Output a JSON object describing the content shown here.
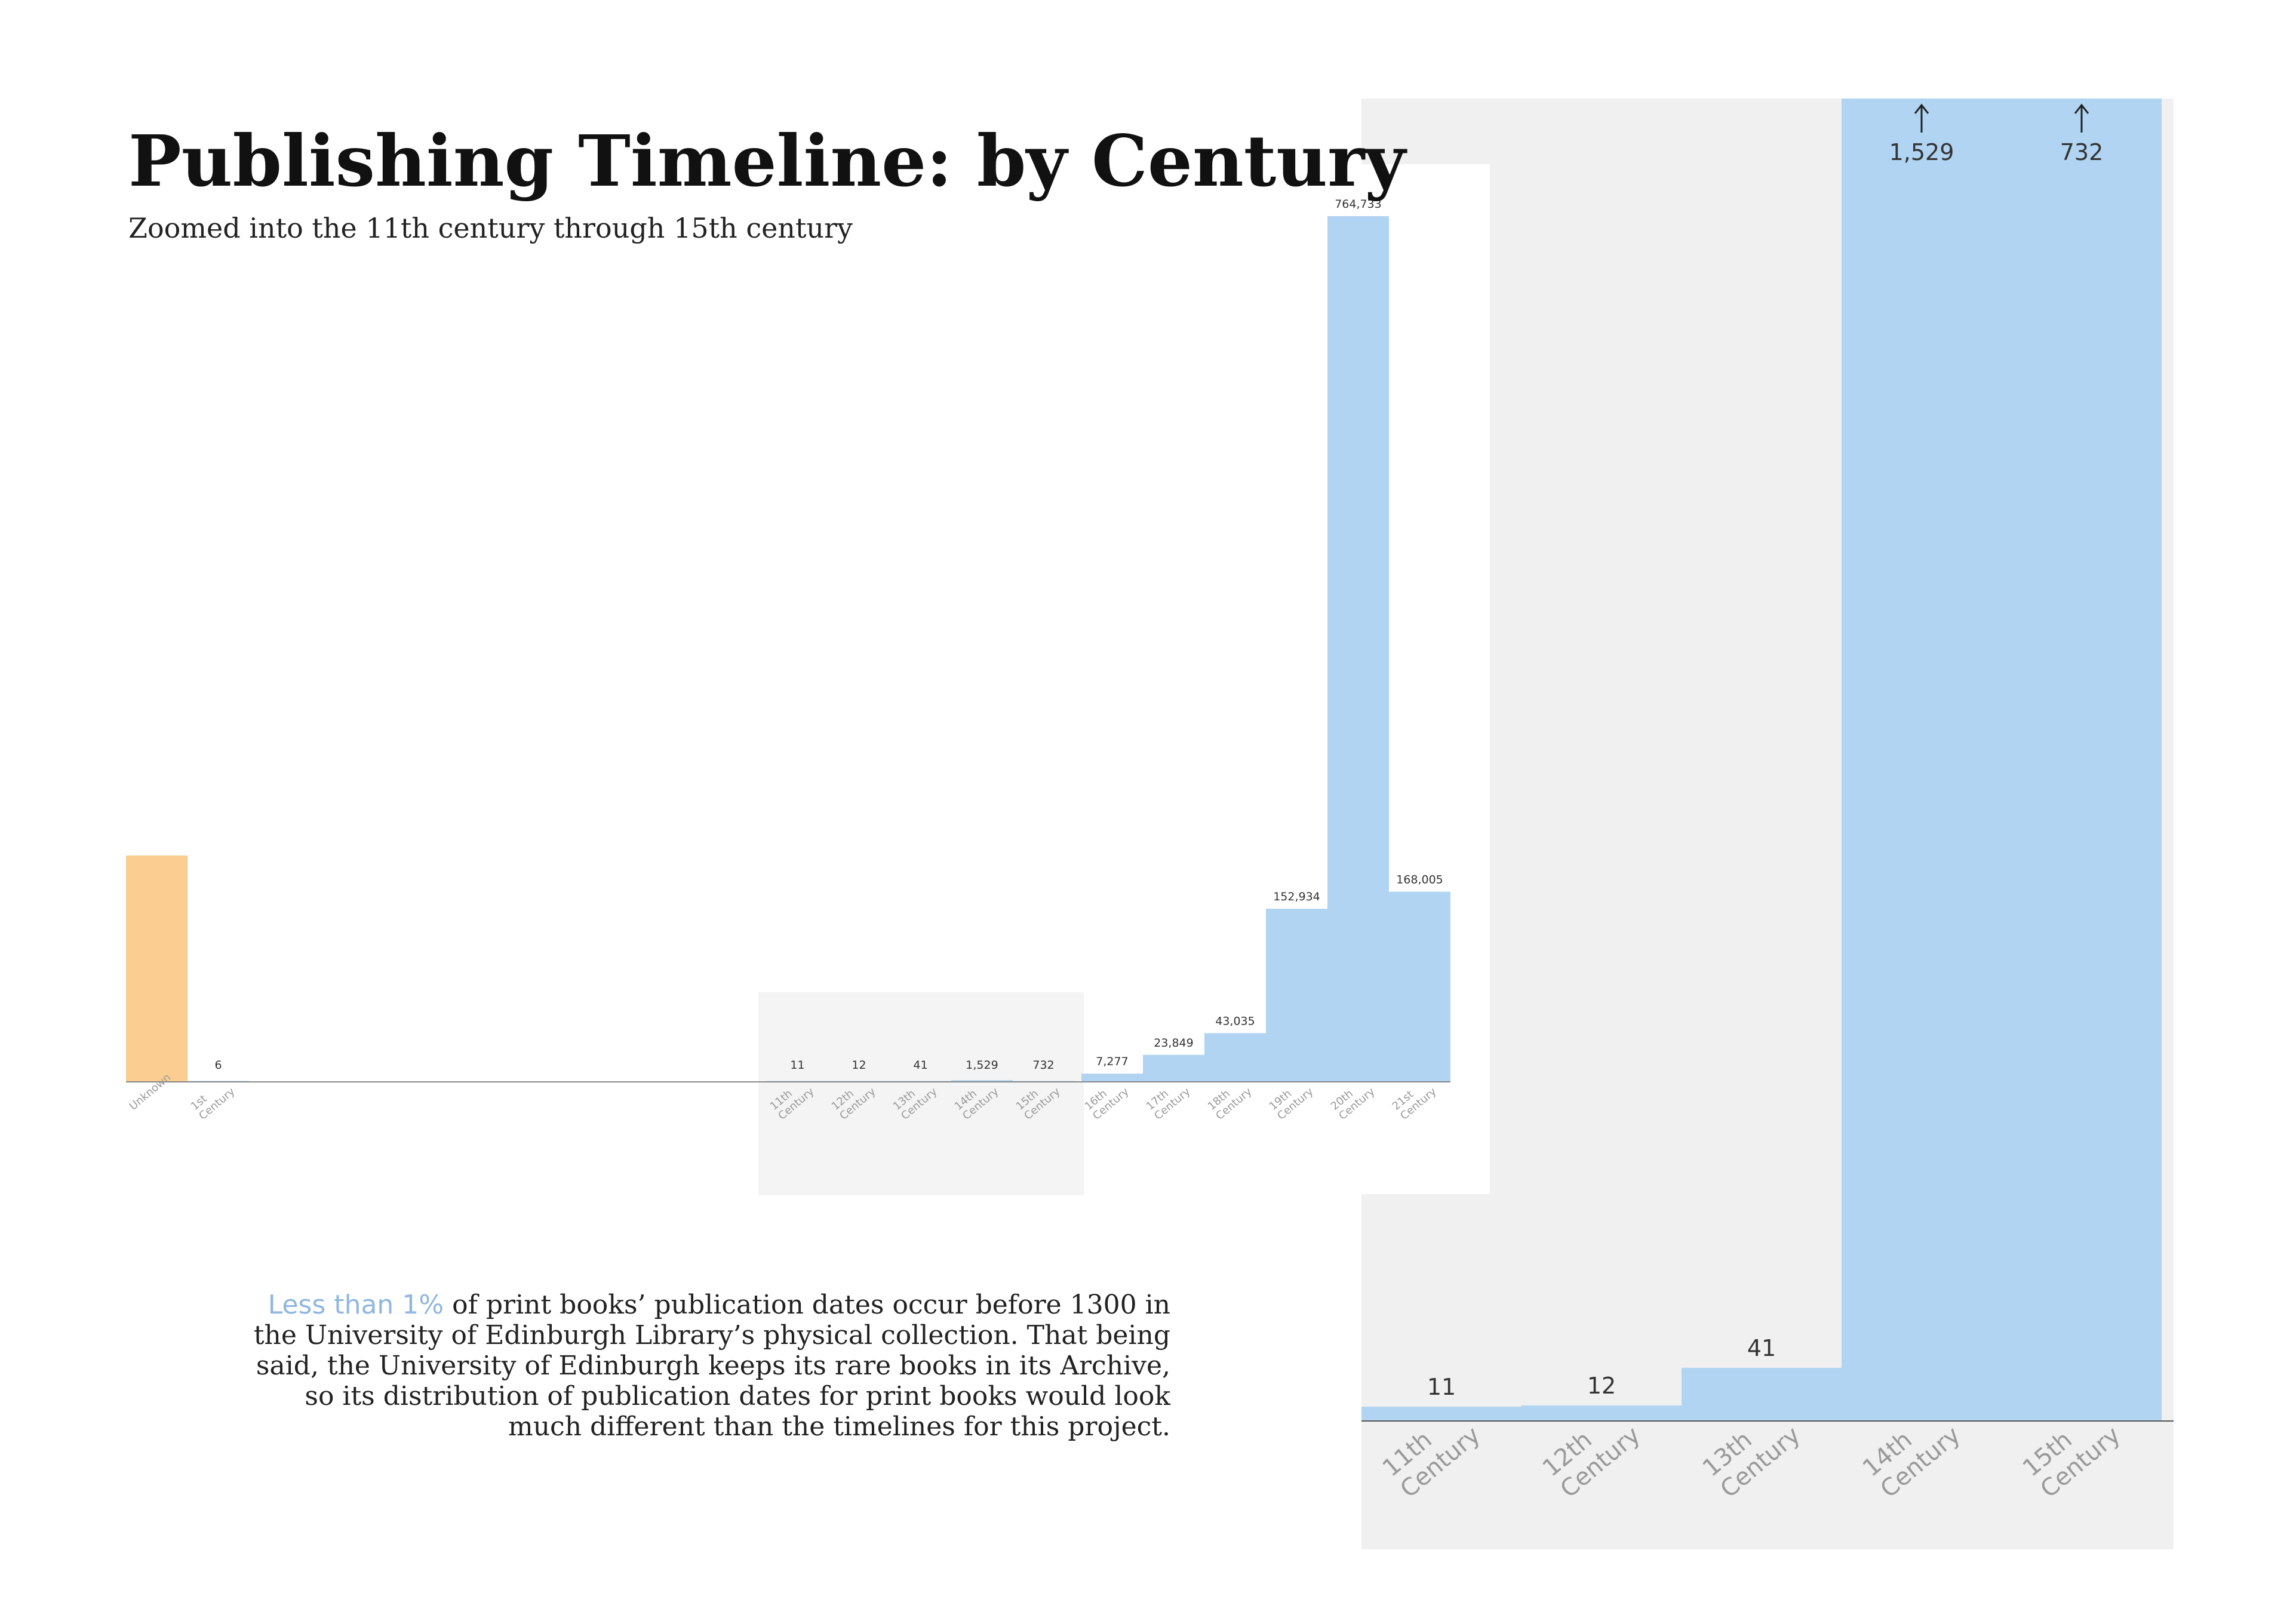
{
  "title": "Publishing Timeline: by Century",
  "subtitle": "Zoomed into the 11th century through 15th century",
  "note": {
    "highlight": "Less than 1%",
    "line1": "of print books’ publication dates occur before 1300 in",
    "line2": "the University of Edinburgh Library’s physical collection.  That being",
    "line3": "said, the University of Edinburgh keeps its rare books in its Archive,",
    "line4": "so its distribution of publication dates for print books would look",
    "line5": "much different than the timelines for this project."
  },
  "colors": {
    "bar": "#b0d4f1",
    "unknown_bar": "#fccd90",
    "highlight_text": "#8fb7e0",
    "zoom_panel": "#f0f0f0",
    "zoom_region": "#f4f4f4",
    "axis": "#888888"
  },
  "chart_data": [
    {
      "type": "bar",
      "categories": [
        "Unknown",
        "1st Century",
        "11th Century",
        "12th Century",
        "13th Century",
        "14th Century",
        "15th Century",
        "16th Century",
        "17th Century",
        "18th Century",
        "19th Century",
        "20th Century",
        "21st Century"
      ],
      "values": [
        200000,
        6,
        11,
        12,
        41,
        1529,
        732,
        7277,
        23849,
        43035,
        152934,
        764733,
        168005
      ],
      "data_labels": [
        "",
        "6",
        "11",
        "12",
        "41",
        "1,529",
        "732",
        "7,277",
        "23,849",
        "43,035",
        "152,934",
        "764,733",
        "168,005"
      ],
      "ylim": [
        0,
        764733
      ],
      "highlighted_range": [
        "11th Century",
        "15th Century"
      ]
    },
    {
      "type": "bar",
      "categories": [
        "11th Century",
        "12th Century",
        "13th Century",
        "14th Century",
        "15th Century"
      ],
      "values": [
        11,
        12,
        41,
        1529,
        732
      ],
      "data_labels": [
        "11",
        "12",
        "41",
        "1,529",
        "732"
      ],
      "truncated": [
        "14th Century",
        "15th Century"
      ]
    }
  ]
}
